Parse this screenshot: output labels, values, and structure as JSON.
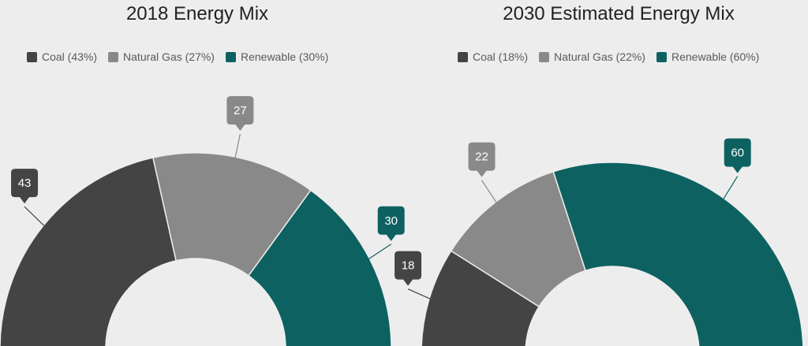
{
  "chart_data": [
    {
      "type": "pie",
      "title": "2018 Energy Mix",
      "categories": [
        "Coal",
        "Natural Gas",
        "Renewable"
      ],
      "values": [
        43,
        27,
        30
      ],
      "legend": [
        "Coal (43%)",
        "Natural Gas (27%)",
        "Renewable (30%)"
      ],
      "data_labels": [
        "43",
        "27",
        "30"
      ],
      "legend_position": "top",
      "style": "semi-donut"
    },
    {
      "type": "pie",
      "title": "2030 Estimated Energy Mix",
      "categories": [
        "Coal",
        "Natural Gas",
        "Renewable"
      ],
      "values": [
        18,
        22,
        60
      ],
      "legend": [
        "Coal (18%)",
        "Natural Gas (22%)",
        "Renewable (60%)"
      ],
      "data_labels": [
        "18",
        "22",
        "60"
      ],
      "legend_position": "top",
      "style": "semi-donut"
    }
  ],
  "colors": {
    "Coal": "#444444",
    "Natural Gas": "#898989",
    "Renewable": "#0d6261"
  }
}
